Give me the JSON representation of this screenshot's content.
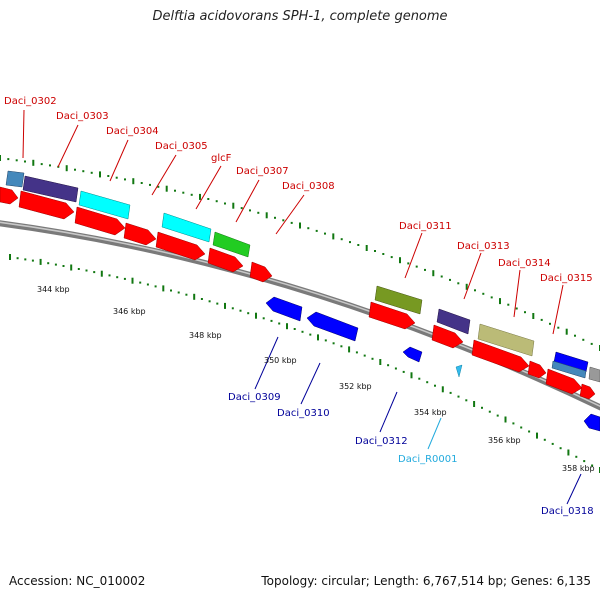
{
  "header": {
    "title": "Delftia acidovorans SPH-1, complete genome"
  },
  "footer": {
    "accession": "Accession: NC_010002",
    "topology": "Topology: circular; Length: 6,767,514 bp; Genes: 6,135"
  },
  "colors": {
    "label_forward": "#cc0000",
    "label_reverse": "#000099",
    "label_rna": "#22aadd",
    "backbone": "#888888",
    "cds_red": "#ff0000",
    "cds_blue": "#0000ff",
    "cds_cyan": "#00ffff",
    "cds_green": "#22cc22",
    "cds_olive": "#779922",
    "cds_slate": "#443388",
    "cds_khaki": "#bbbb77",
    "cds_steel": "#4488bb",
    "trna": "#33bbee",
    "tick_mark": "#117711"
  },
  "scale_labels": [
    "344 kbp",
    "346 kbp",
    "348 kbp",
    "350 kbp",
    "352 kbp",
    "354 kbp",
    "356 kbp",
    "358 kbp"
  ],
  "gene_labels": {
    "forward": [
      "Daci_0302",
      "Daci_0303",
      "Daci_0304",
      "Daci_0305",
      "glcF",
      "Daci_0307",
      "Daci_0308",
      "Daci_0311",
      "Daci_0313",
      "Daci_0314",
      "Daci_0315"
    ],
    "reverse": [
      "Daci_0309",
      "Daci_0310",
      "Daci_0312",
      "Daci_0318"
    ],
    "rna": [
      "Daci_R0001"
    ]
  }
}
